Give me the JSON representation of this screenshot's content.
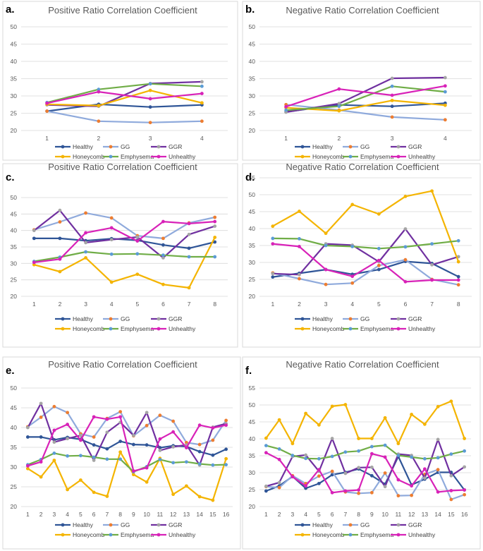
{
  "chart_data": [
    {
      "type": "line",
      "panel_label": "a.",
      "title": "Positive Ratio Correlation Coefficient",
      "categories": [
        "1",
        "2",
        "3",
        "4"
      ],
      "ylim": [
        20,
        50
      ],
      "yticks": [
        "20",
        "25",
        "30",
        "35",
        "40",
        "45",
        "50"
      ],
      "grid": true,
      "series": [
        {
          "name": "Healthy",
          "color": "#2f5597",
          "values": [
            25.6,
            27.6,
            26.8,
            27.4
          ]
        },
        {
          "name": "GG",
          "color": "#8faadc",
          "values": [
            25.6,
            22.7,
            22.3,
            22.7
          ]
        },
        {
          "name": "GGR",
          "color": "#7030a0",
          "values": [
            27.4,
            27.0,
            33.6,
            34.1
          ]
        },
        {
          "name": "Honeycomb",
          "color": "#f4b400",
          "values": [
            27.6,
            27.2,
            31.6,
            28.0
          ]
        },
        {
          "name": "Emphysema",
          "color": "#70ad47",
          "values": [
            28.1,
            31.9,
            33.5,
            32.8
          ]
        },
        {
          "name": "Unhealthy",
          "color": "#d822b8",
          "values": [
            27.9,
            31.2,
            29.2,
            30.7
          ]
        }
      ]
    },
    {
      "type": "line",
      "panel_label": "b.",
      "title": "Negative Ratio Correlation Coefficient",
      "categories": [
        "1",
        "2",
        "3",
        "4"
      ],
      "ylim": [
        20,
        50
      ],
      "yticks": [
        "20",
        "25",
        "30",
        "35",
        "40",
        "45",
        "50"
      ],
      "grid": true,
      "series": [
        {
          "name": "Healthy",
          "color": "#2f5597",
          "values": [
            25.4,
            27.4,
            27.0,
            27.9
          ]
        },
        {
          "name": "GG",
          "color": "#8faadc",
          "values": [
            27.5,
            25.9,
            23.9,
            23.1
          ]
        },
        {
          "name": "GGR",
          "color": "#7030a0",
          "values": [
            25.3,
            27.8,
            35.1,
            35.3
          ]
        },
        {
          "name": "Honeycomb",
          "color": "#f4b400",
          "values": [
            26.6,
            25.7,
            28.7,
            27.3
          ]
        },
        {
          "name": "Emphysema",
          "color": "#70ad47",
          "values": [
            25.9,
            27.0,
            32.8,
            31.2
          ]
        },
        {
          "name": "Unhealthy",
          "color": "#d822b8",
          "values": [
            26.9,
            32.0,
            30.2,
            32.9
          ]
        }
      ]
    },
    {
      "type": "line",
      "panel_label": "c.",
      "title": "Positive Ratio Correlation Coefficient",
      "categories": [
        "1",
        "2",
        "3",
        "4",
        "5",
        "6",
        "7",
        "8"
      ],
      "ylim": [
        20,
        50
      ],
      "yticks": [
        "20",
        "25",
        "30",
        "35",
        "40",
        "45",
        "50"
      ],
      "grid": true,
      "series": [
        {
          "name": "Healthy",
          "color": "#2f5597",
          "values": [
            37.6,
            37.6,
            36.9,
            37.5,
            37.0,
            35.6,
            34.6,
            36.5
          ]
        },
        {
          "name": "GG",
          "color": "#8faadc",
          "values": [
            40.2,
            42.6,
            45.3,
            43.8,
            38.4,
            37.6,
            42.3,
            44.0
          ]
        },
        {
          "name": "GGR",
          "color": "#7030a0",
          "values": [
            40.0,
            46.1,
            36.3,
            37.2,
            38.0,
            31.7,
            38.8,
            41.3
          ]
        },
        {
          "name": "Honeycomb",
          "color": "#f4b400",
          "values": [
            29.6,
            27.5,
            31.7,
            24.3,
            26.7,
            23.6,
            22.6,
            37.9
          ]
        },
        {
          "name": "Emphysema",
          "color": "#70ad47",
          "values": [
            30.6,
            31.9,
            33.5,
            32.8,
            32.9,
            32.5,
            32.0,
            32.0
          ]
        },
        {
          "name": "Unhealthy",
          "color": "#d822b8",
          "values": [
            30.3,
            31.3,
            39.3,
            40.8,
            36.8,
            42.7,
            42.1,
            42.7
          ]
        }
      ]
    },
    {
      "type": "line",
      "panel_label": "d.",
      "title": "Negative Ratio Correlation Coefficient",
      "categories": [
        "1",
        "2",
        "3",
        "4",
        "5",
        "6",
        "7",
        "8"
      ],
      "ylim": [
        20,
        55
      ],
      "yticks": [
        "20",
        "25",
        "30",
        "35",
        "40",
        "45",
        "50",
        "55"
      ],
      "grid": true,
      "series": [
        {
          "name": "Healthy",
          "color": "#2f5597",
          "values": [
            25.7,
            26.8,
            27.9,
            26.5,
            27.9,
            30.3,
            29.7,
            25.8
          ]
        },
        {
          "name": "GG",
          "color": "#8faadc",
          "values": [
            26.9,
            25.2,
            23.5,
            23.9,
            29.1,
            30.8,
            25.0,
            23.4
          ]
        },
        {
          "name": "GGR",
          "color": "#7030a0",
          "values": [
            26.7,
            26.4,
            35.5,
            35.1,
            30.2,
            39.9,
            29.3,
            31.7
          ]
        },
        {
          "name": "Honeycomb",
          "color": "#f4b400",
          "values": [
            40.7,
            45.1,
            38.6,
            47.1,
            44.3,
            49.5,
            51.1,
            30.2
          ]
        },
        {
          "name": "Emphysema",
          "color": "#70ad47",
          "values": [
            37.1,
            37.0,
            35.0,
            34.7,
            34.1,
            34.6,
            35.5,
            36.4
          ]
        },
        {
          "name": "Unhealthy",
          "color": "#d822b8",
          "values": [
            35.5,
            34.7,
            27.9,
            25.9,
            30.6,
            24.3,
            24.8,
            24.8
          ]
        }
      ]
    },
    {
      "type": "line",
      "panel_label": "e.",
      "title": "Positive Ratio Correlation Coefficient",
      "categories": [
        "1",
        "2",
        "3",
        "4",
        "5",
        "6",
        "7",
        "8",
        "9",
        "10",
        "11",
        "12",
        "13",
        "14",
        "15",
        "16"
      ],
      "ylim": [
        20,
        50
      ],
      "yticks": [
        "20",
        "25",
        "30",
        "35",
        "40",
        "45",
        "50"
      ],
      "grid": true,
      "series": [
        {
          "name": "Healthy",
          "color": "#2f5597",
          "values": [
            37.6,
            37.6,
            36.9,
            37.5,
            37.0,
            35.6,
            34.6,
            36.5,
            35.7,
            35.6,
            34.9,
            35.4,
            35.2,
            33.9,
            33.0,
            34.5
          ]
        },
        {
          "name": "GG",
          "color": "#8faadc",
          "values": [
            40.2,
            42.6,
            45.3,
            43.8,
            38.4,
            37.6,
            42.3,
            44.0,
            37.9,
            40.5,
            43.1,
            41.6,
            36.2,
            35.7,
            36.8,
            41.8
          ]
        },
        {
          "name": "GGR",
          "color": "#7030a0",
          "values": [
            40.0,
            46.1,
            36.3,
            37.2,
            38.0,
            31.7,
            38.8,
            41.3,
            38.0,
            43.8,
            34.2,
            35.1,
            35.6,
            30.5,
            40.1,
            41.0
          ]
        },
        {
          "name": "Honeycomb",
          "color": "#f4b400",
          "values": [
            29.6,
            27.5,
            31.7,
            24.3,
            26.7,
            23.6,
            22.6,
            33.8,
            28.1,
            26.2,
            32.2,
            23.1,
            25.2,
            22.5,
            21.6,
            32.1
          ]
        },
        {
          "name": "Emphysema",
          "color": "#70ad47",
          "values": [
            30.6,
            31.9,
            33.5,
            32.8,
            32.9,
            32.5,
            32.0,
            32.0,
            28.8,
            30.1,
            31.9,
            31.1,
            31.3,
            30.8,
            30.5,
            30.6
          ]
        },
        {
          "name": "Unhealthy",
          "color": "#d822b8",
          "values": [
            30.3,
            31.3,
            39.3,
            40.8,
            36.8,
            42.7,
            42.1,
            42.7,
            29.0,
            29.8,
            37.1,
            38.9,
            34.9,
            40.6,
            39.9,
            40.6
          ]
        }
      ]
    },
    {
      "type": "line",
      "panel_label": "f.",
      "title": "Negative Ratio Correlation Coefficient",
      "categories": [
        "1",
        "2",
        "3",
        "4",
        "5",
        "6",
        "7",
        "8",
        "9",
        "10",
        "11",
        "12",
        "13",
        "14",
        "15",
        "16"
      ],
      "ylim": [
        20,
        55
      ],
      "yticks": [
        "20",
        "25",
        "30",
        "35",
        "40",
        "45",
        "50",
        "55"
      ],
      "grid": true,
      "series": [
        {
          "name": "Healthy",
          "color": "#2f5597",
          "values": [
            24.6,
            26.1,
            28.9,
            25.4,
            26.8,
            29.4,
            30.1,
            31.1,
            29.1,
            26.6,
            34.8,
            26.4,
            28.1,
            30.1,
            30.1,
            24.9
          ]
        },
        {
          "name": "GG",
          "color": "#8faadc",
          "values": [
            25.9,
            25.6,
            29.1,
            26.8,
            29.0,
            30.4,
            24.3,
            23.9,
            24.1,
            29.9,
            23.2,
            23.3,
            29.5,
            30.9,
            22.1,
            23.5
          ]
        },
        {
          "name": "GGR",
          "color": "#7030a0",
          "values": [
            26.0,
            27.1,
            34.8,
            35.2,
            30.4,
            40.1,
            29.8,
            31.5,
            31.6,
            25.9,
            35.5,
            35.1,
            28.4,
            39.8,
            29.1,
            31.7
          ]
        },
        {
          "name": "Honeycomb",
          "color": "#f4b400",
          "values": [
            40.2,
            45.6,
            38.6,
            47.5,
            44.1,
            49.6,
            50.1,
            40.1,
            40.1,
            46.2,
            38.6,
            47.2,
            44.3,
            49.5,
            51.1,
            40.1
          ]
        },
        {
          "name": "Emphysema",
          "color": "#70ad47",
          "values": [
            38.0,
            37.0,
            35.1,
            34.2,
            34.1,
            34.8,
            36.1,
            36.4,
            37.7,
            38.1,
            35.1,
            34.6,
            34.1,
            34.4,
            35.5,
            36.4
          ]
        },
        {
          "name": "Unhealthy",
          "color": "#d822b8",
          "values": [
            35.9,
            33.9,
            28.8,
            26.1,
            30.9,
            24.1,
            24.6,
            24.9,
            35.6,
            34.6,
            27.9,
            26.1,
            31.1,
            24.3,
            24.7,
            24.9
          ]
        }
      ]
    }
  ]
}
